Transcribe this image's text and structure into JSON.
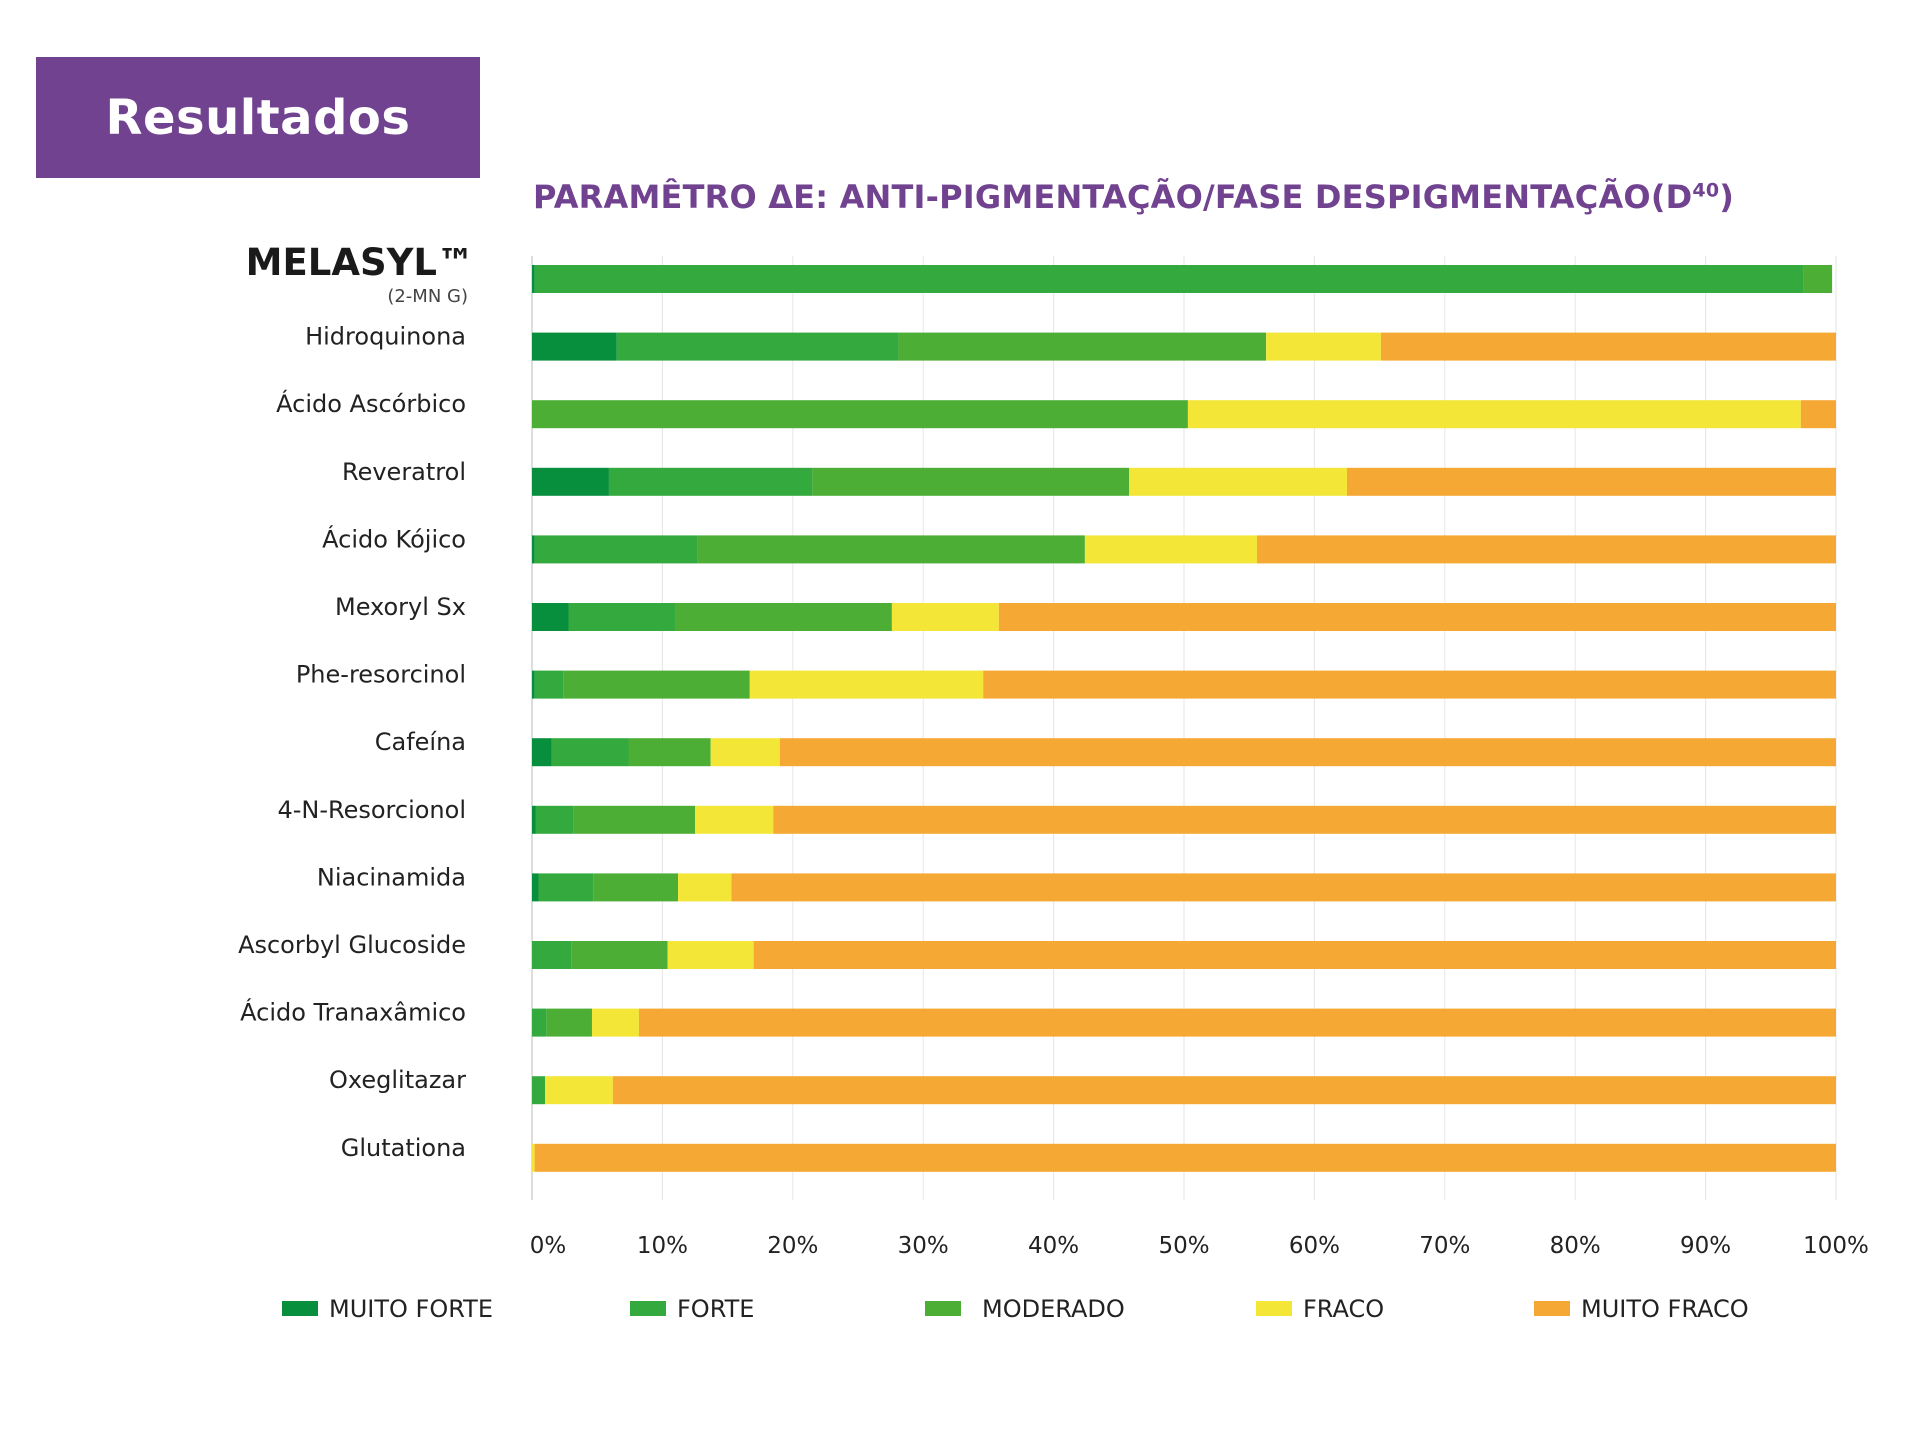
{
  "header": {
    "label": "Resultados",
    "color": "#71428f"
  },
  "chart_data": {
    "type": "bar",
    "orientation": "horizontal",
    "stacked": true,
    "title": "PARAMÊTRO ΔE: ANTI-PIGMENTAÇÃO/FASE DESPIGMENTAÇÃO(D",
    "title_superscript": "40",
    "title_close": ")",
    "xlabel": "",
    "ylabel": "",
    "xlim": [
      0,
      100
    ],
    "x_ticks": [
      "0%",
      "10%",
      "20%",
      "30%",
      "40%",
      "50%",
      "60%",
      "70%",
      "80%",
      "90%",
      "100%"
    ],
    "x_tick_values": [
      0,
      10,
      20,
      30,
      40,
      50,
      60,
      70,
      80,
      90,
      100
    ],
    "grid": "vertical",
    "legend_position": "bottom",
    "categories": [
      "MELASYL™",
      "Hidroquinona",
      "Ácido Ascórbico",
      "Reveratrol",
      "Ácido Kójico",
      "Mexoryl Sx",
      "Phe-resorcinol",
      "Cafeína",
      "4-N-Resorcionol",
      "Niacinamida",
      "Ascorbyl Glucoside",
      "Ácido Tranaxâmico",
      "Oxeglitazar",
      "Glutationa"
    ],
    "category_sublabels": {
      "MELASYL™": "(2-MN G)"
    },
    "series": [
      {
        "name": "MUITO FORTE",
        "color": "#078f3e",
        "values": [
          0.2,
          6.5,
          0,
          5.9,
          0.2,
          2.8,
          0.2,
          1.5,
          0.3,
          0.5,
          0,
          0,
          0,
          0
        ]
      },
      {
        "name": "FORTE",
        "color": "#33a93e",
        "values": [
          97.3,
          21.6,
          0,
          15.6,
          12.5,
          8.2,
          2.2,
          5.9,
          2.9,
          4.2,
          3.0,
          1.1,
          1.0,
          0
        ]
      },
      {
        "name": "MODERADO",
        "color": "#4cae35",
        "values": [
          2.2,
          28.2,
          50.3,
          24.3,
          29.7,
          16.6,
          14.3,
          6.3,
          9.3,
          6.5,
          7.4,
          3.5,
          0,
          0
        ]
      },
      {
        "name": "FRACO",
        "color": "#f4e637",
        "values": [
          0,
          8.8,
          47.0,
          16.7,
          13.2,
          8.2,
          17.9,
          5.3,
          6.0,
          4.1,
          6.6,
          3.6,
          5.2,
          0.2
        ]
      },
      {
        "name": "MUITO FRACO",
        "color": "#f6a834",
        "values": [
          0,
          35.3,
          2.7,
          37.5,
          44.5,
          64.2,
          65.8,
          81.0,
          81.5,
          84.7,
          83.0,
          91.8,
          93.8,
          99.8
        ]
      }
    ]
  }
}
